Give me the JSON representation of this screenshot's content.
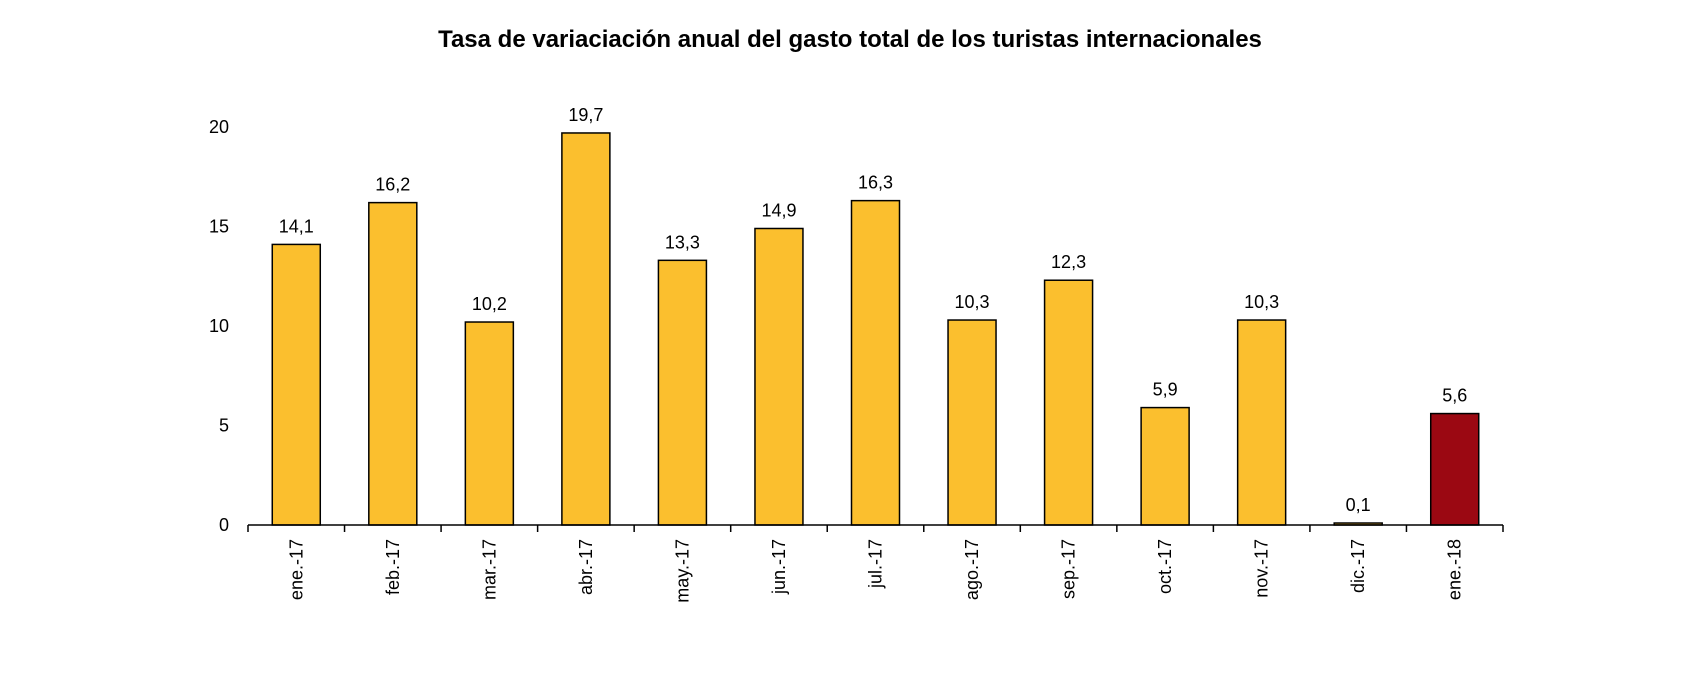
{
  "chart_data": {
    "type": "bar",
    "title": "Tasa de variaciación anual del gasto total de los turistas internacionales",
    "xlabel": "",
    "ylabel": "",
    "ylim": [
      0,
      20
    ],
    "yticks": [
      0,
      5,
      10,
      15,
      20
    ],
    "categories": [
      "ene.-17",
      "feb.-17",
      "mar.-17",
      "abr.-17",
      "may.-17",
      "jun.-17",
      "jul.-17",
      "ago.-17",
      "sep.-17",
      "oct.-17",
      "nov.-17",
      "dic.-17",
      "ene.-18"
    ],
    "values": [
      14.1,
      16.2,
      10.2,
      19.7,
      13.3,
      14.9,
      16.3,
      10.3,
      12.3,
      5.9,
      10.3,
      0.1,
      5.6
    ],
    "value_labels": [
      "14,1",
      "16,2",
      "10,2",
      "19,7",
      "13,3",
      "14,9",
      "16,3",
      "10,3",
      "12,3",
      "5,9",
      "10,3",
      "0,1",
      "5,6"
    ],
    "colors": {
      "bar": "#FBBF2E",
      "highlight_bar": "#9B0812",
      "bar_outline": "#000000",
      "axis": "#000000"
    },
    "highlight_index": 12,
    "grid": false,
    "legend": "none"
  }
}
